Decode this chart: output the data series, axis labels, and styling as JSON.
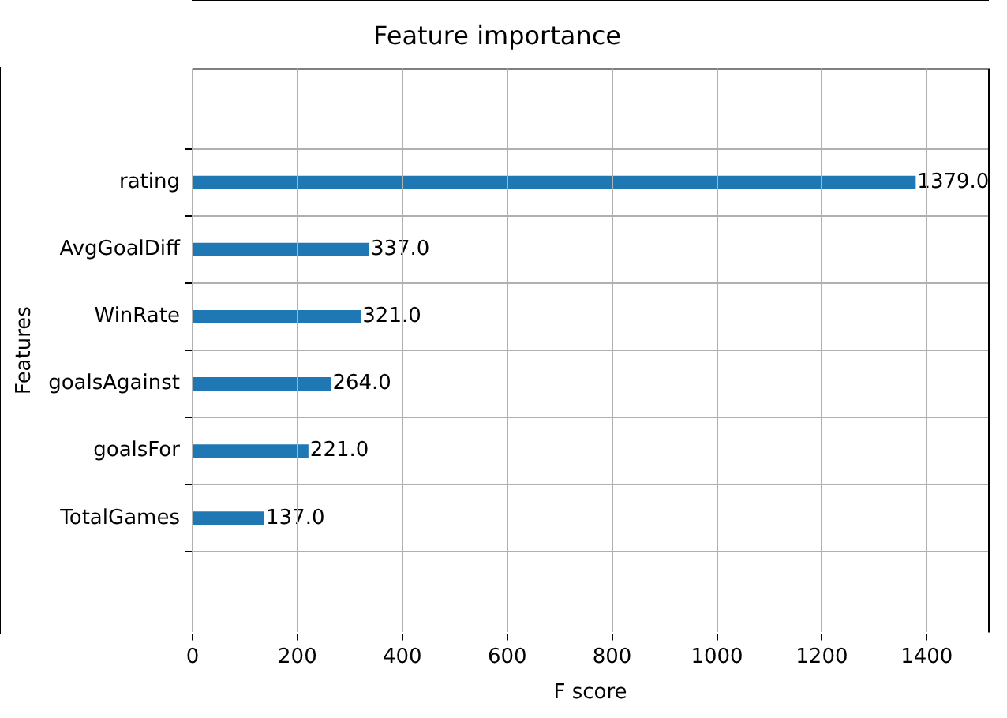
{
  "chart_data": {
    "type": "bar",
    "orientation": "horizontal",
    "title": "Feature importance",
    "xlabel": "F score",
    "ylabel": "Features",
    "categories": [
      "rating",
      "AvgGoalDiff",
      "WinRate",
      "goalsAgainst",
      "goalsFor",
      "TotalGames"
    ],
    "values": [
      1379,
      337,
      321,
      264,
      221,
      137
    ],
    "value_labels": [
      "1379.0",
      "337.0",
      "321.0",
      "264.0",
      "221.0",
      "137.0"
    ],
    "color": "#1f77b4",
    "xlim": [
      0,
      1516.9
    ],
    "xticks": [
      0,
      200,
      400,
      600,
      800,
      1000,
      1200,
      1400
    ],
    "grid": true,
    "legend": false
  }
}
